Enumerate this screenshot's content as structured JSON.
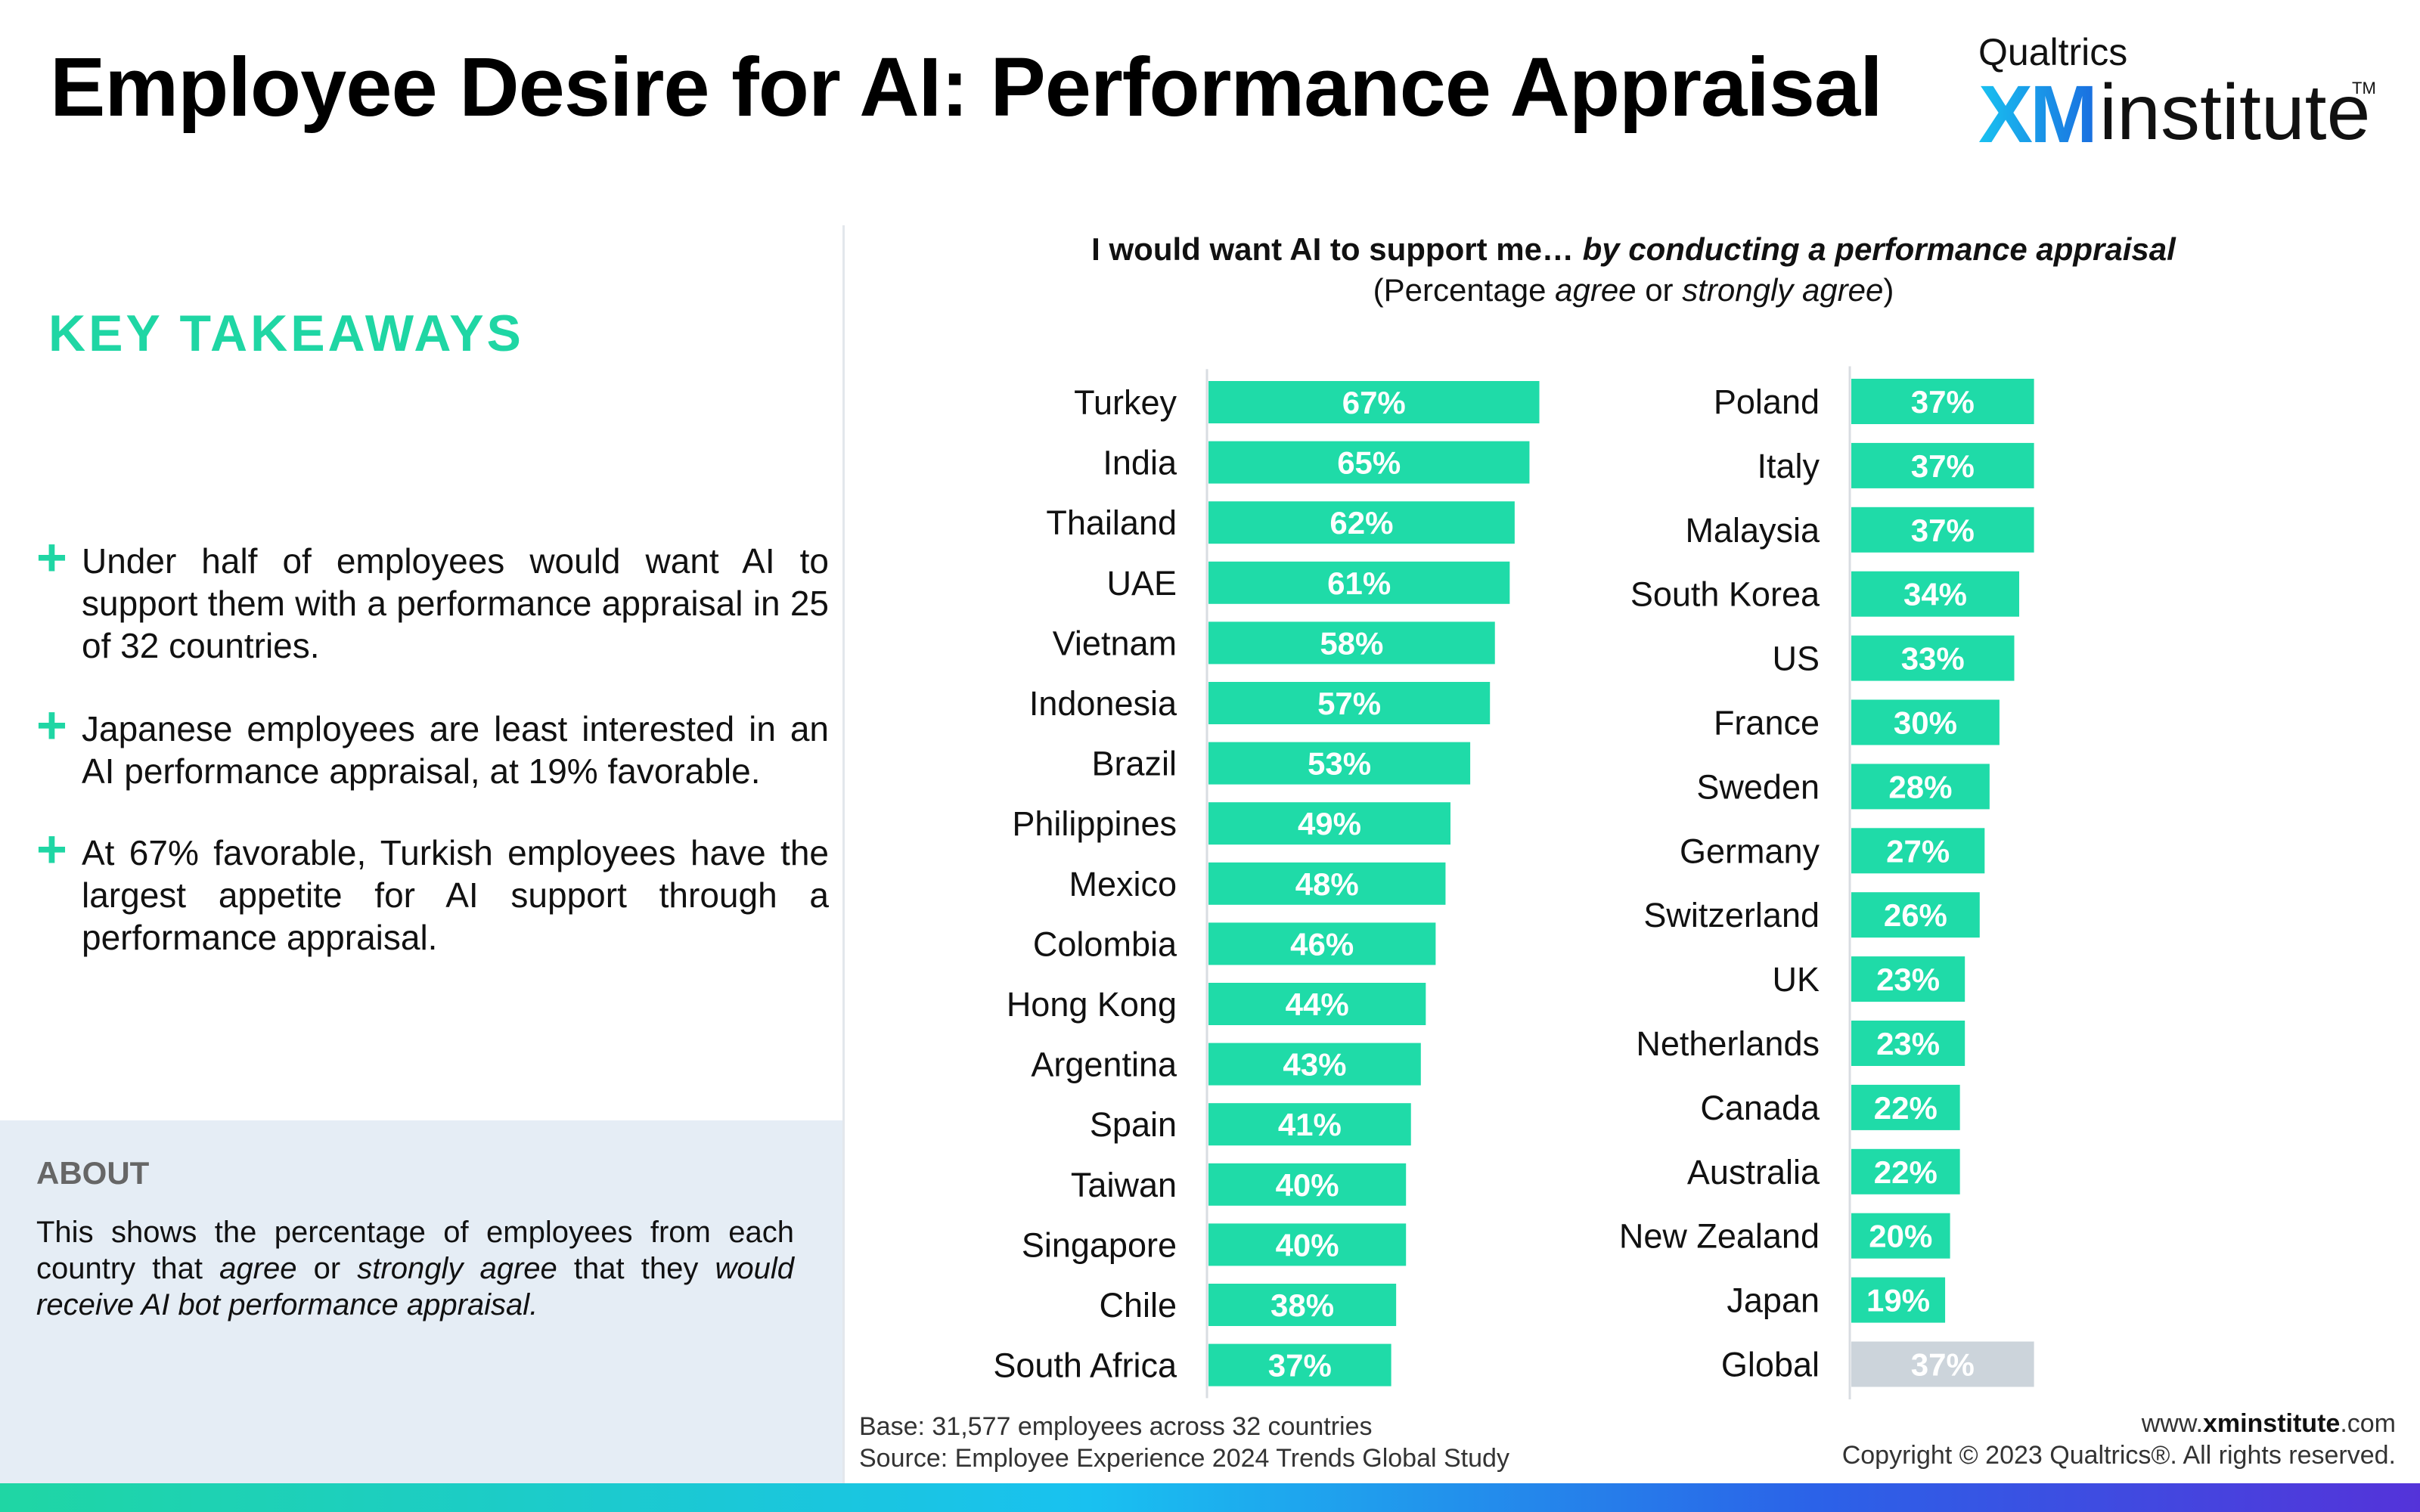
{
  "header": {
    "title": "Employee Desire for AI: Performance Appraisal",
    "logo": {
      "brand": "Qualtrics",
      "name_bold": "XM",
      "name_rest": "institute",
      "trademark": "TM"
    }
  },
  "takeaways": {
    "heading": "KEY TAKEAWAYS",
    "items": [
      "Under half of employees would want AI to support them with a performance appraisal in 25 of 32 countries.",
      "Japanese employees are least interested in an AI performance appraisal, at 19% favorable.",
      "At 67% favorable, Turkish employees have the largest appetite for AI support through a performance appraisal."
    ]
  },
  "about": {
    "heading": "ABOUT",
    "text_1": "This shows the percentage of employees from each country that ",
    "em_1": "agree",
    "text_2": " or ",
    "em_2": "strongly agree",
    "text_3": " that they ",
    "em_3": "would receive AI bot performance appraisal."
  },
  "chart_data": {
    "type": "bar",
    "orientation": "horizontal",
    "title_plain": "I would want AI to support me…",
    "title_emphasis": "by conducting a performance appraisal",
    "subtitle_1": "(Percentage ",
    "subtitle_em_1": "agree",
    "subtitle_2": " or ",
    "subtitle_em_2": "strongly agree",
    "subtitle_3": ")",
    "value_suffix": "%",
    "bar_color": "#1fdba8",
    "highlight_color": "#ccd4db",
    "label_color": "#ffffff",
    "panels": [
      {
        "categories": [
          "Turkey",
          "India",
          "Thailand",
          "UAE",
          "Vietnam",
          "Indonesia",
          "Brazil",
          "Philippines",
          "Mexico",
          "Colombia",
          "Hong Kong",
          "Argentina",
          "Spain",
          "Taiwan",
          "Singapore",
          "Chile",
          "South Africa"
        ],
        "values": [
          67,
          65,
          62,
          61,
          58,
          57,
          53,
          49,
          48,
          46,
          44,
          43,
          41,
          40,
          40,
          38,
          37
        ]
      },
      {
        "categories": [
          "Poland",
          "Italy",
          "Malaysia",
          "South Korea",
          "US",
          "France",
          "Sweden",
          "Germany",
          "Switzerland",
          "UK",
          "Netherlands",
          "Canada",
          "Australia",
          "New Zealand",
          "Japan",
          "Global"
        ],
        "values": [
          37,
          37,
          37,
          34,
          33,
          30,
          28,
          27,
          26,
          23,
          23,
          22,
          22,
          20,
          19,
          37
        ],
        "highlight": "Global"
      }
    ]
  },
  "footer": {
    "base": "Base: 31,577 employees across 32 countries",
    "source": "Source: Employee Experience 2024 Trends Global Study",
    "website_prefix": "www.",
    "website_bold": "xminstitute",
    "website_suffix": ".com",
    "copyright": "Copyright © 2023 Qualtrics®. All rights reserved."
  }
}
